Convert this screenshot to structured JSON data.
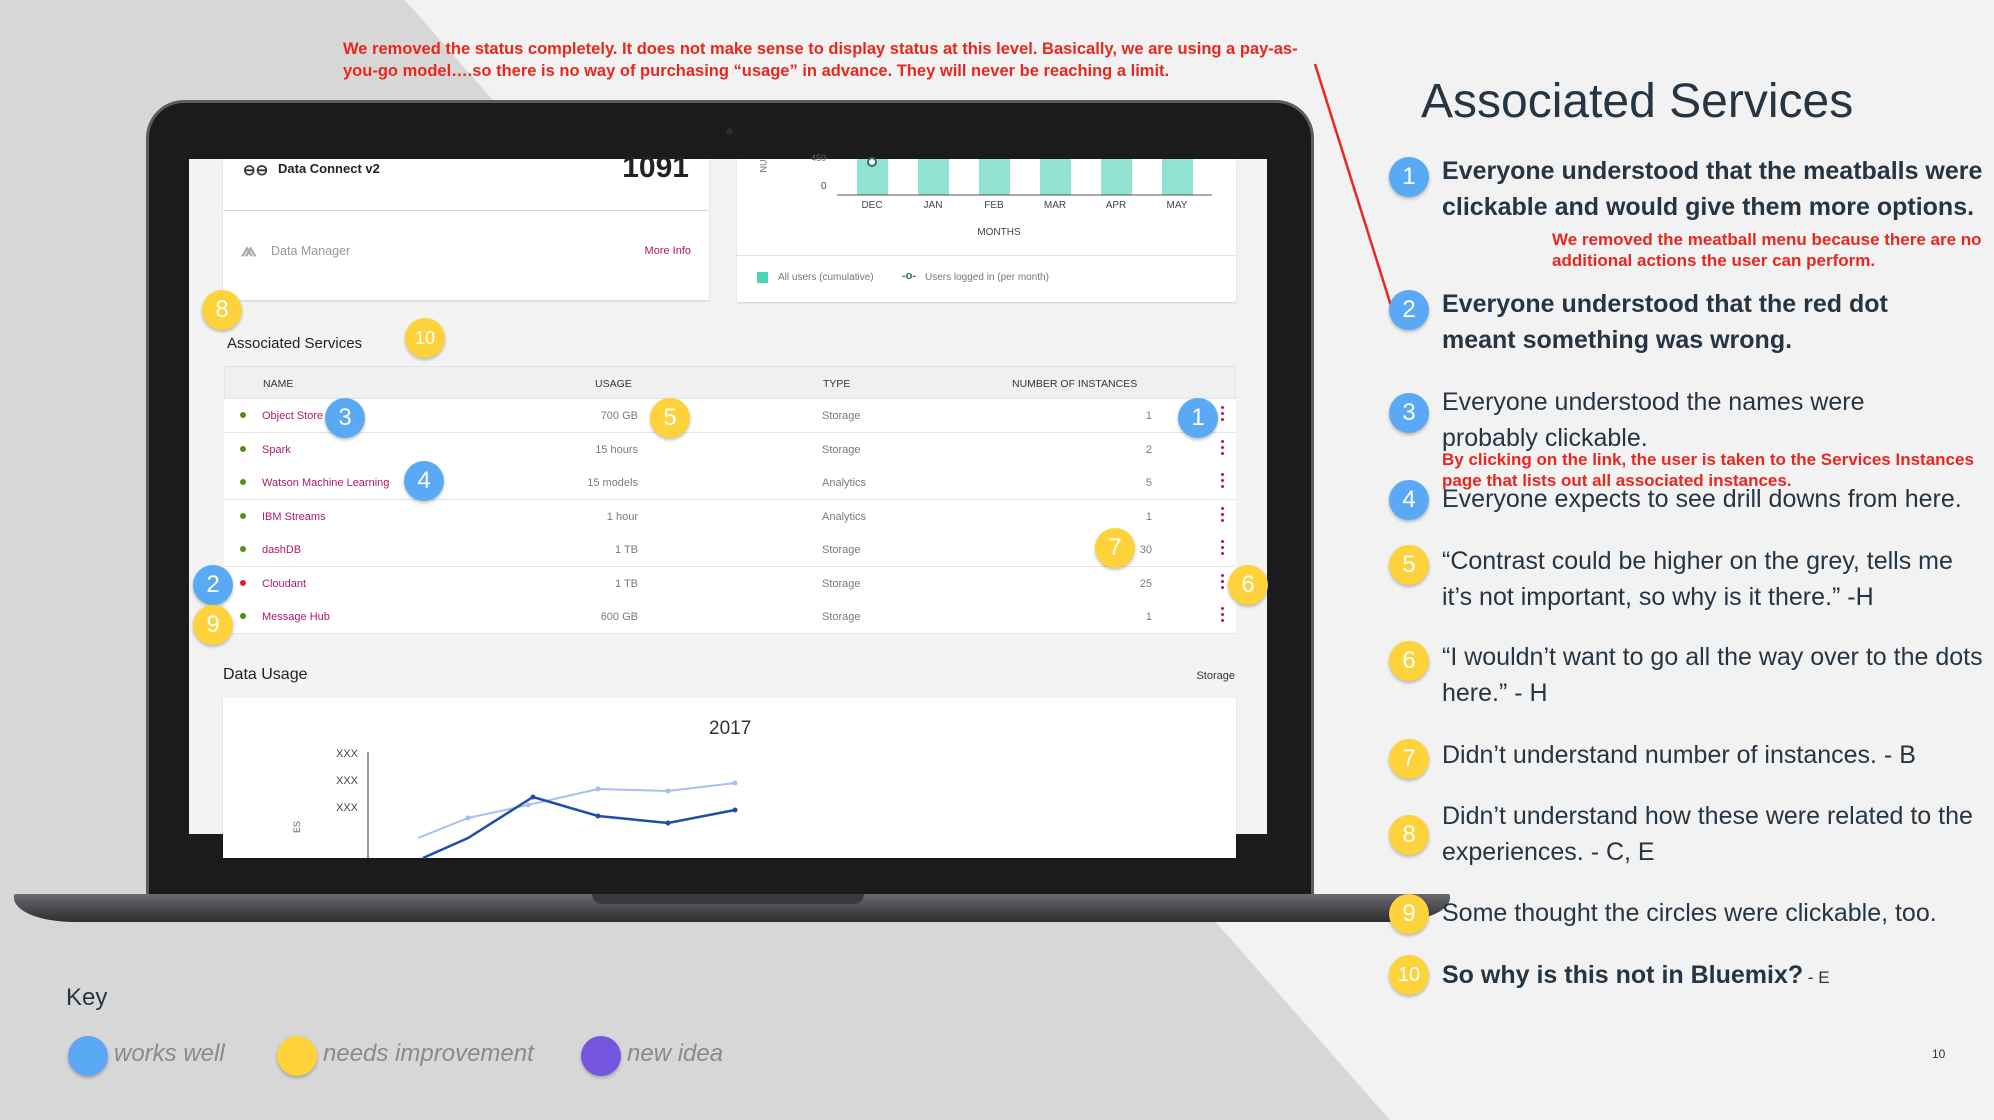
{
  "note_top": "We removed the status completely. It does not make sense to display status at this level. Basically, we are using a pay-as-you-go model….so there is no way of purchasing “usage” in advance. They will never be reaching a limit.",
  "screen": {
    "data_connect": {
      "name": "Data Connect v2",
      "count": "1091"
    },
    "data_manager": {
      "name": "Data Manager",
      "more": "More Info"
    },
    "chart": {
      "months": [
        "DEC",
        "JAN",
        "FEB",
        "MAR",
        "APR",
        "MAY"
      ],
      "xlabel": "MONTHS",
      "ytick": "0",
      "ytick_partial": "450",
      "yaxis_partial": "NU",
      "legend_bars": "All users (cumulative)",
      "legend_line": "Users logged in (per month)"
    },
    "services_title": "Associated Services",
    "columns": {
      "name": "NAME",
      "usage": "USAGE",
      "type": "TYPE",
      "instances": "NUMBER OF INSTANCES"
    },
    "rows": [
      {
        "name": "Object Store",
        "usage": "700 GB",
        "type": "Storage",
        "instances": "1",
        "status": "green"
      },
      {
        "name": "Spark",
        "usage": "15 hours",
        "type": "Storage",
        "instances": "2",
        "status": "green"
      },
      {
        "name": "Watson Machine Learning",
        "usage": "15 models",
        "type": "Analytics",
        "instances": "5",
        "status": "green"
      },
      {
        "name": "IBM Streams",
        "usage": "1 hour",
        "type": "Analytics",
        "instances": "1",
        "status": "green"
      },
      {
        "name": "dashDB",
        "usage": "1 TB",
        "type": "Storage",
        "instances": "30",
        "status": "green"
      },
      {
        "name": "Cloudant",
        "usage": "1 TB",
        "type": "Storage",
        "instances": "25",
        "status": "red"
      },
      {
        "name": "Message Hub",
        "usage": "600 GB",
        "type": "Storage",
        "instances": "1",
        "status": "green"
      }
    ],
    "data_usage": {
      "title": "Data Usage",
      "filter": "Storage",
      "year": "2017",
      "yticks": [
        "XXX",
        "XXX",
        "XXX"
      ],
      "yaxis_partial": "ES"
    }
  },
  "colors": {
    "status_green": "#5a8a1e",
    "status_red": "#e0202a",
    "link": "#b0176a",
    "works_well": "#5aa9f5",
    "needs_improvement": "#fdd23a",
    "new_idea": "#7456dc"
  },
  "sidebar": {
    "title": "Associated Services",
    "items": [
      {
        "num": "1",
        "text": "Everyone understood that the meatballs were clickable and would give them more options.",
        "note": "We removed the meatball menu because there are no additional actions the user can perform."
      },
      {
        "num": "2",
        "text": "Everyone understood that the red dot meant something was wrong."
      },
      {
        "num": "3",
        "text": "Everyone understood the names were probably clickable.",
        "note": "By clicking on the link, the user is taken to the Services Instances page that lists out all associated instances."
      },
      {
        "num": "4",
        "text": "Everyone expects to see drill downs from here."
      },
      {
        "num": "5",
        "text": "“Contrast could be higher on the grey, tells me it’s not important, so why is it there.” -H"
      },
      {
        "num": "6",
        "text": "“I wouldn’t want to go all the way over to the dots here.” - H"
      },
      {
        "num": "7",
        "text": "Didn’t understand number of instances. - B"
      },
      {
        "num": "8",
        "text": "Didn’t understand how these were related to the experiences. - C, E"
      },
      {
        "num": "9",
        "text": "Some thought the circles were clickable, too."
      },
      {
        "num": "10",
        "text": "So why is this not in Bluemix?",
        "suffix": " - E"
      }
    ]
  },
  "key": {
    "title": "Key",
    "works_well": "works well",
    "needs_improvement": "needs improvement",
    "new_idea": "new idea"
  },
  "page_number": "10"
}
